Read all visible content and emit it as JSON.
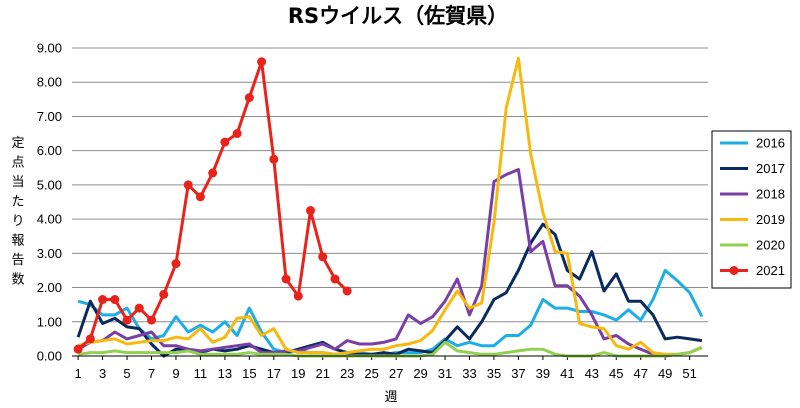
{
  "chart_data": {
    "type": "line",
    "title": "RSウイルス（佐賀県）",
    "xlabel": "週",
    "ylabel": "定点当たり報告数",
    "xlim": [
      1,
      52
    ],
    "ylim": [
      0,
      9
    ],
    "y_ticks": [
      "0.00",
      "1.00",
      "2.00",
      "3.00",
      "4.00",
      "5.00",
      "6.00",
      "7.00",
      "8.00",
      "9.00"
    ],
    "x_ticks": [
      "1",
      "3",
      "5",
      "7",
      "9",
      "11",
      "13",
      "15",
      "17",
      "19",
      "21",
      "23",
      "25",
      "27",
      "29",
      "31",
      "33",
      "35",
      "37",
      "39",
      "41",
      "43",
      "45",
      "47",
      "49",
      "51"
    ],
    "grid": "horizontal",
    "legend_position": "right",
    "series": [
      {
        "name": "2016",
        "color": "#1EAEE6",
        "marker": false,
        "values": [
          1.6,
          1.5,
          1.2,
          1.2,
          1.4,
          0.8,
          0.5,
          0.6,
          1.15,
          0.7,
          0.9,
          0.7,
          1.0,
          0.6,
          1.4,
          0.7,
          0.2,
          0.1,
          0.15,
          0.1,
          0.1,
          0.05,
          0.05,
          0.1,
          0.05,
          0.05,
          0.1,
          0.1,
          0.1,
          0.2,
          0.5,
          0.3,
          0.4,
          0.3,
          0.3,
          0.6,
          0.6,
          0.9,
          1.65,
          1.4,
          1.4,
          1.3,
          1.3,
          1.2,
          1.05,
          1.35,
          1.05,
          1.65,
          2.5,
          2.2,
          1.85,
          1.15
        ]
      },
      {
        "name": "2017",
        "color": "#0A2A5E",
        "marker": false,
        "values": [
          0.55,
          1.6,
          0.95,
          1.1,
          0.85,
          0.8,
          0.35,
          0.0,
          0.2,
          0.2,
          0.1,
          0.2,
          0.15,
          0.2,
          0.3,
          0.2,
          0.1,
          0.1,
          0.2,
          0.3,
          0.4,
          0.2,
          0.1,
          0.05,
          0.05,
          0.1,
          0.05,
          0.2,
          0.15,
          0.1,
          0.45,
          0.85,
          0.5,
          1.0,
          1.65,
          1.85,
          2.5,
          3.3,
          3.85,
          3.55,
          2.5,
          2.25,
          3.05,
          1.9,
          2.4,
          1.6,
          1.6,
          1.2,
          0.5,
          0.55,
          0.5,
          0.45
        ]
      },
      {
        "name": "2018",
        "color": "#7A3FA6",
        "marker": false,
        "values": [
          0.2,
          0.4,
          0.45,
          0.7,
          0.5,
          0.6,
          0.7,
          0.3,
          0.3,
          0.2,
          0.15,
          0.2,
          0.25,
          0.3,
          0.35,
          0.1,
          0.1,
          0.15,
          0.15,
          0.25,
          0.35,
          0.2,
          0.45,
          0.35,
          0.35,
          0.4,
          0.5,
          1.2,
          0.95,
          1.15,
          1.6,
          2.25,
          1.2,
          2.05,
          5.1,
          5.3,
          5.45,
          3.05,
          3.35,
          2.05,
          2.05,
          1.75,
          1.2,
          0.5,
          0.6,
          0.35,
          0.2,
          0.05,
          0.0,
          0.05,
          0.1,
          0.25
        ]
      },
      {
        "name": "2019",
        "color": "#F5B90F",
        "marker": false,
        "values": [
          0.3,
          0.4,
          0.45,
          0.5,
          0.35,
          0.4,
          0.45,
          0.45,
          0.55,
          0.5,
          0.8,
          0.4,
          0.55,
          1.1,
          1.15,
          0.6,
          0.8,
          0.2,
          0.1,
          0.1,
          0.1,
          0.05,
          0.1,
          0.15,
          0.2,
          0.2,
          0.3,
          0.35,
          0.45,
          0.75,
          1.35,
          1.9,
          1.4,
          1.55,
          3.9,
          7.25,
          8.7,
          5.9,
          4.2,
          3.05,
          3.0,
          0.95,
          0.85,
          0.8,
          0.3,
          0.2,
          0.4,
          0.1,
          0.05,
          0.05,
          0.1,
          0.25
        ]
      },
      {
        "name": "2020",
        "color": "#92D050",
        "marker": false,
        "values": [
          0.05,
          0.1,
          0.1,
          0.15,
          0.1,
          0.1,
          0.1,
          0.1,
          0.1,
          0.15,
          0.05,
          0.05,
          0.05,
          0.05,
          0.1,
          0.05,
          0.05,
          0.05,
          0.0,
          0.0,
          0.0,
          0.0,
          0.0,
          0.0,
          0.0,
          0.0,
          0.0,
          0.0,
          0.0,
          0.05,
          0.4,
          0.15,
          0.1,
          0.05,
          0.05,
          0.1,
          0.15,
          0.2,
          0.2,
          0.05,
          0.0,
          0.0,
          0.0,
          0.1,
          0.0,
          0.0,
          0.0,
          0.0,
          0.0,
          0.05,
          0.1,
          0.25
        ]
      },
      {
        "name": "2021",
        "color": "#E8231B",
        "marker": true,
        "values": [
          0.2,
          0.5,
          1.65,
          1.65,
          1.05,
          1.4,
          1.05,
          1.8,
          2.7,
          5.0,
          4.65,
          5.35,
          6.25,
          6.5,
          7.55,
          8.6,
          5.75,
          2.25,
          1.75,
          4.25,
          2.9,
          2.25,
          1.9
        ]
      }
    ]
  }
}
